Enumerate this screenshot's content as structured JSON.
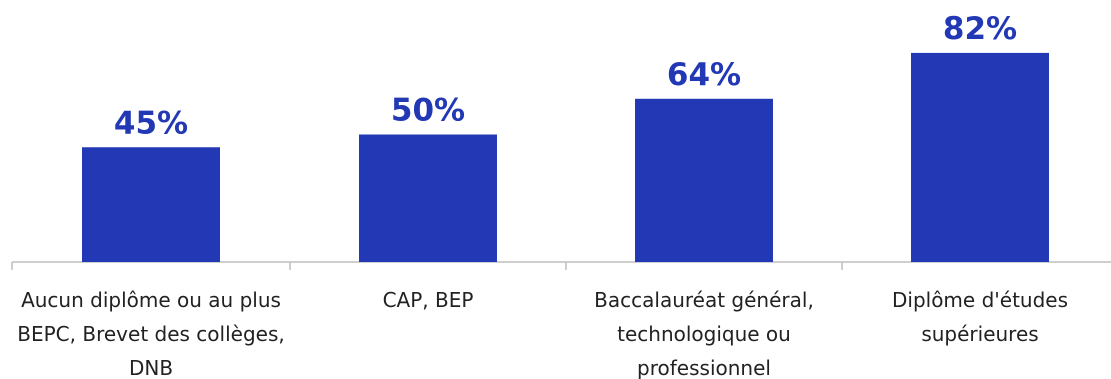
{
  "colors": {
    "bar": "#2238B5",
    "value_label": "#2238B5",
    "axis": "#BFBFBF",
    "category_text": "#222222"
  },
  "chart_data": {
    "type": "bar",
    "title": "",
    "xlabel": "",
    "ylabel": "",
    "ylim": [
      0,
      100
    ],
    "grid": false,
    "legend": "none",
    "categories": [
      "Aucun diplôme ou au plus BEPC, Brevet des collèges, DNB",
      "CAP, BEP",
      "Baccalauréat général, technologique ou professionnel",
      "Diplôme d'études supérieures"
    ],
    "category_lines": [
      [
        "Aucun diplôme ou au plus",
        "BEPC, Brevet des collèges,",
        "DNB"
      ],
      [
        "CAP, BEP"
      ],
      [
        "Baccalauréat général,",
        "technologique ou",
        "professionnel"
      ],
      [
        "Diplôme d'études",
        "supérieures"
      ]
    ],
    "values": [
      45,
      50,
      64,
      82
    ],
    "value_labels": [
      "45%",
      "50%",
      "64%",
      "82%"
    ]
  }
}
